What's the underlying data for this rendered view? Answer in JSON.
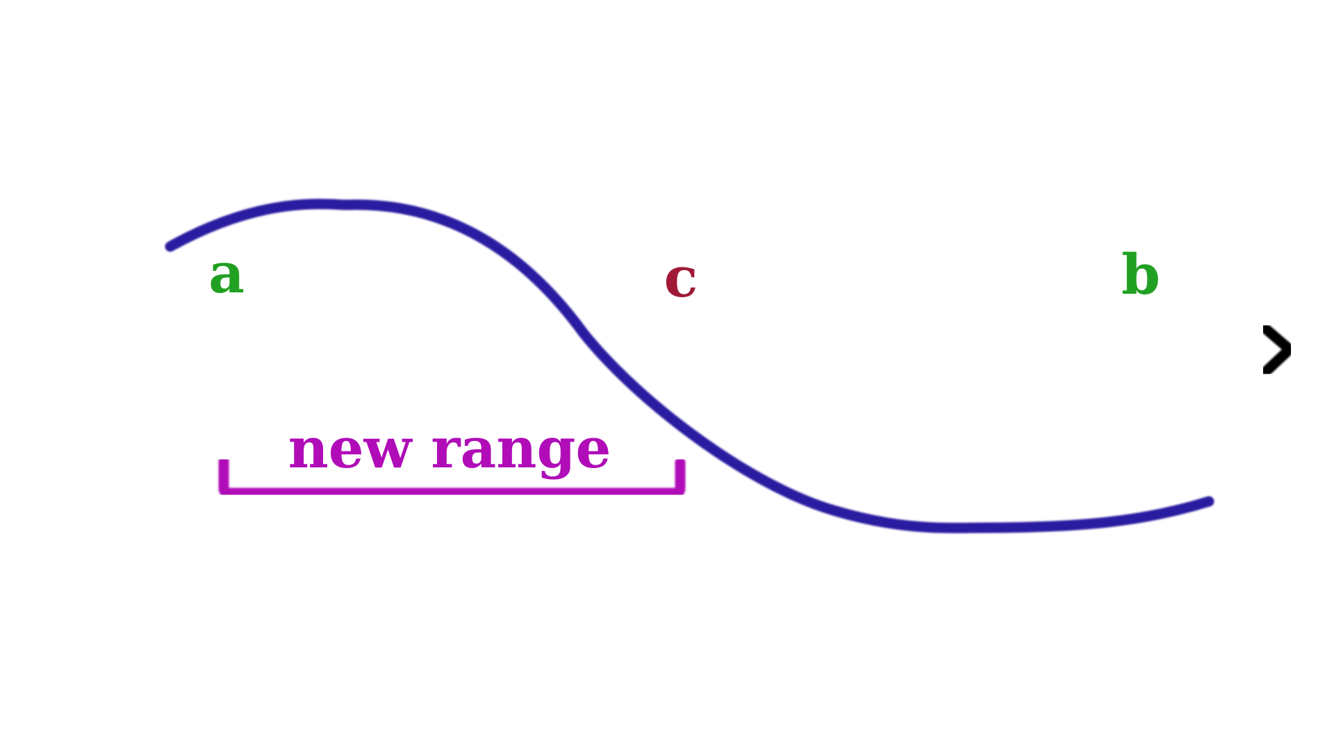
{
  "labels": {
    "a": "a",
    "b": "b",
    "c": "c",
    "range": "new range"
  },
  "colors": {
    "axis": "#000000",
    "endpoint": "#22a022",
    "midpoint": "#a01a38",
    "curve": "#2c1aa0",
    "bracket": "#b00cb8"
  }
}
